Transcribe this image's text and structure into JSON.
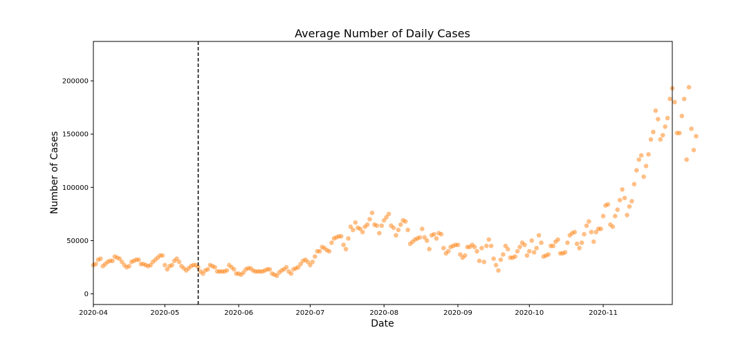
{
  "chart_data": {
    "type": "scatter",
    "title": "Average Number of Daily Cases",
    "xlabel": "Date",
    "ylabel": "Number of Cases",
    "x_ticks": [
      "2020-04",
      "2020-05",
      "2020-06",
      "2020-07",
      "2020-08",
      "2020-09",
      "2020-10",
      "2020-11"
    ],
    "y_ticks": [
      0,
      50000,
      100000,
      150000,
      200000
    ],
    "xlim": [
      "2020-04-01",
      "2020-11-30"
    ],
    "ylim": [
      -10000,
      237000
    ],
    "vline": {
      "x": "2020-05-15",
      "style": "dashed",
      "color": "#000000"
    },
    "marker_color": "#ff7f0e",
    "marker_alpha": 0.5,
    "grid": false,
    "series": [
      {
        "x_start": "2020-04-01",
        "x_step_days": 1,
        "values": [
          27000,
          28000,
          32000,
          33000,
          26000,
          28000,
          30000,
          31000,
          31000,
          35000,
          34000,
          33000,
          30000,
          27000,
          25000,
          26000,
          30000,
          31000,
          32000,
          32000,
          28000,
          28000,
          27000,
          26000,
          27000,
          30000,
          32000,
          34000,
          36000,
          36000,
          27000,
          23000,
          26000,
          27000,
          31000,
          33000,
          30000,
          26000,
          24000,
          22000,
          24000,
          26000,
          27000,
          27000,
          25000,
          21000,
          19000,
          22000,
          23000,
          27000,
          26000,
          25000,
          21000,
          21000,
          21000,
          21000,
          22000,
          27000,
          25000,
          23000,
          19000,
          19000,
          18000,
          20000,
          23000,
          24000,
          24000,
          22000,
          21000,
          21000,
          21000,
          21000,
          22000,
          23000,
          23000,
          19000,
          18000,
          17000,
          20000,
          22000,
          23000,
          25000,
          21000,
          19000,
          23000,
          24000,
          25000,
          28000,
          31000,
          32000,
          30000,
          27000,
          30000,
          35000,
          40000,
          40000,
          44000,
          43000,
          41000,
          40000,
          48000,
          52000,
          53000,
          54000,
          54000,
          46000,
          42000,
          52000,
          63000,
          60000,
          67000,
          62000,
          61000,
          58000,
          63000,
          65000,
          70000,
          76000,
          65000,
          64000,
          57000,
          64000,
          69000,
          72000,
          75000,
          64000,
          62000,
          55000,
          60000,
          65000,
          69000,
          68000,
          60000,
          47000,
          49000,
          51000,
          52000,
          53000,
          61000,
          53000,
          50000,
          42000,
          55000,
          56000,
          52000,
          57000,
          56000,
          43000,
          38000,
          40000,
          44000,
          45000,
          46000,
          46000,
          37000,
          34000,
          36000,
          44000,
          44000,
          46000,
          44000,
          40000,
          31000,
          43000,
          30000,
          45000,
          51000,
          45000,
          33000,
          27000,
          22000,
          32000,
          37000,
          45000,
          42000,
          34000,
          34000,
          35000,
          40000,
          44000,
          48000,
          46000,
          36000,
          40000,
          50000,
          39000,
          43000,
          55000,
          48000,
          35000,
          36000,
          37000,
          45000,
          45000,
          49000,
          51000,
          38000,
          38000,
          39000,
          48000,
          55000,
          57000,
          58000,
          47000,
          43000,
          48000,
          56000,
          64000,
          68000,
          58000,
          49000,
          58000,
          61000,
          61000,
          73000,
          83000,
          84000,
          65000,
          63000,
          73000,
          79000,
          88000,
          98000,
          90000,
          74000,
          82000,
          87000,
          103000,
          116000,
          126000,
          130000,
          110000,
          120000,
          131000,
          145000,
          152000,
          172000,
          164000,
          145000,
          149000,
          157000,
          165000,
          183000,
          193000,
          180000,
          151000,
          151000,
          167000,
          183000,
          126000,
          194000,
          155000,
          135000,
          148000
        ]
      }
    ]
  }
}
